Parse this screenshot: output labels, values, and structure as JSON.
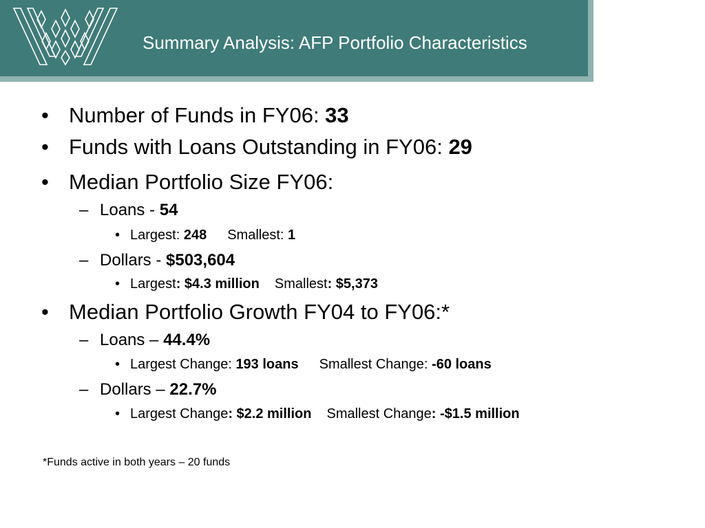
{
  "header": {
    "title": "Summary Analysis: AFP Portfolio Characteristics"
  },
  "content": {
    "bullet_marker": "•",
    "dash_marker": "–",
    "funds_count": {
      "label": "Number of Funds in FY06: ",
      "value": "33"
    },
    "funds_with_loans": {
      "label": "Funds with Loans Outstanding in FY06: ",
      "value": "29"
    },
    "median_size": {
      "label": "Median Portfolio Size FY06:"
    },
    "size_loans": {
      "label": "Loans - ",
      "value": "54"
    },
    "size_loans_range": {
      "largest_label": "Largest: ",
      "largest_value": "248",
      "smallest_label": "Smallest: ",
      "smallest_value": "1"
    },
    "size_dollars": {
      "label": "Dollars - ",
      "value": "$503,604"
    },
    "size_dollars_range": {
      "largest_label": "Largest",
      "largest_value": ": $4.3 million",
      "smallest_label": "Smallest",
      "smallest_value": ": $5,373"
    },
    "median_growth": {
      "label": "Median Portfolio Growth FY04 to FY06:*"
    },
    "growth_loans": {
      "label": "Loans – ",
      "value": "44.4%"
    },
    "growth_loans_range": {
      "largest_label": "Largest Change: ",
      "largest_value": "193 loans",
      "smallest_label": "Smallest Change: ",
      "smallest_value": "-60 loans"
    },
    "growth_dollars": {
      "label": "Dollars – ",
      "value": "22.7%"
    },
    "growth_dollars_range": {
      "largest_label": "Largest Change",
      "largest_value": ": $2.2 million",
      "smallest_label": "Smallest Change",
      "smallest_value": ": -$1.5 million"
    }
  },
  "footnote": "*Funds active in both years – 20 funds",
  "colors": {
    "header_bg": "#3f7b78",
    "header_shadow": "#8fb3b1",
    "title_text": "#ffffff",
    "body_text": "#000000"
  }
}
